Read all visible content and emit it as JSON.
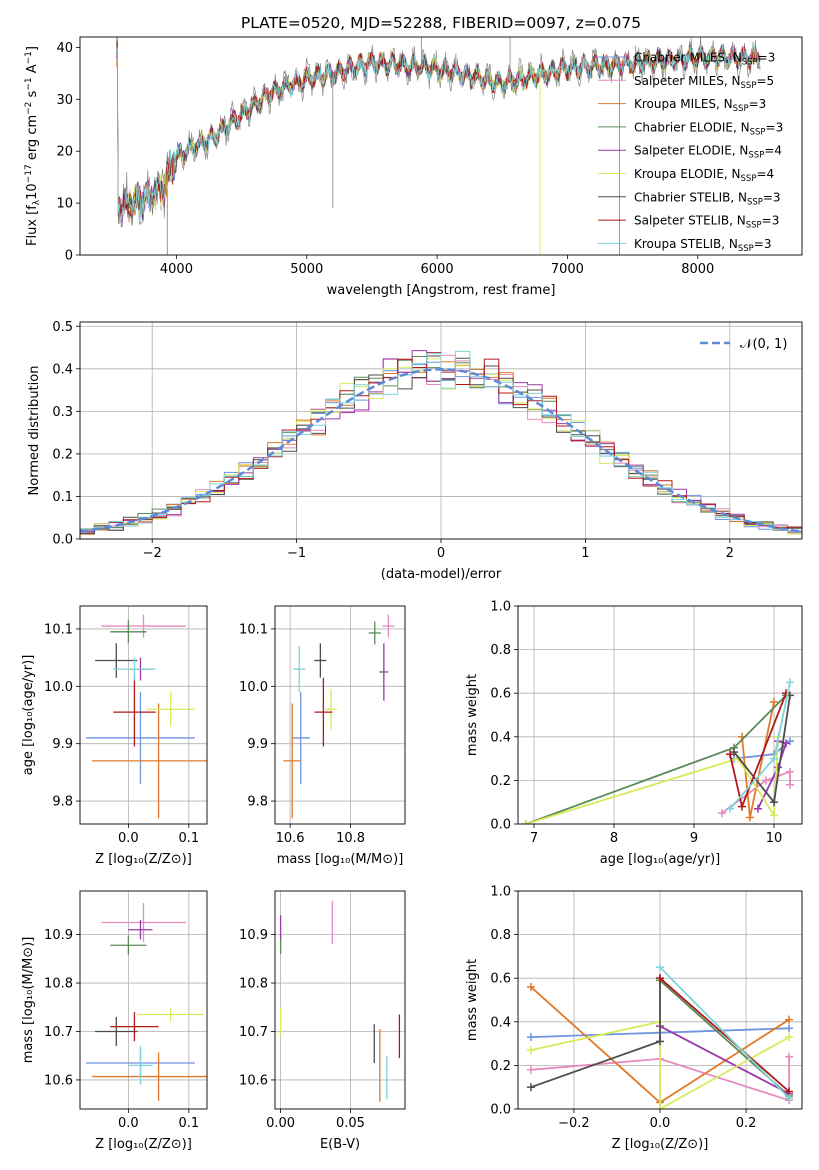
{
  "colors": {
    "chab_miles": "#6f94e0",
    "salp_miles": "#e68ac0",
    "krou_miles": "#e0792a",
    "chab_elodie": "#5a8a5a",
    "salp_elodie": "#9a3aaa",
    "krou_elodie": "#d8ea5a",
    "chab_stelib": "#4d4d4d",
    "salp_stelib": "#b01818",
    "krou_stelib": "#7fd4d9",
    "normal": "#5b8ad8"
  },
  "chart_data": [
    {
      "id": "spectrum",
      "type": "line",
      "title": "PLATE=0520, MJD=52288, FIBERID=0097, z=0.075",
      "xlabel": "wavelength [Angstrom, rest frame]",
      "ylabel_parts": [
        "Flux [f",
        "λ",
        "10",
        "−17",
        " erg cm",
        "−2",
        " s",
        "−1",
        " A",
        "−1",
        "]"
      ],
      "xlim": [
        3260,
        8800
      ],
      "ylim": [
        0,
        42
      ],
      "xticks": [
        4000,
        5000,
        6000,
        7000,
        8000
      ],
      "yticks": [
        0,
        10,
        20,
        30,
        40
      ],
      "continuum_x": [
        3550,
        3700,
        3900,
        4000,
        4150,
        4300,
        4500,
        4700,
        5000,
        5200,
        5500,
        6000,
        6500,
        7000,
        7500,
        8000,
        8500
      ],
      "continuum_y": [
        9,
        10,
        13,
        19,
        21,
        23,
        27,
        31,
        34,
        35,
        37,
        36,
        33,
        36,
        37,
        38,
        38
      ],
      "legend": [
        {
          "label": "Chabrier MILES, N",
          "sub": "SSP",
          "suffix": "=3",
          "color": "chab_miles"
        },
        {
          "label": "Salpeter MILES, N",
          "sub": "SSP",
          "suffix": "=5",
          "color": "salp_miles"
        },
        {
          "label": "Kroupa MILES, N",
          "sub": "SSP",
          "suffix": "=3",
          "color": "krou_miles"
        },
        {
          "label": "Chabrier ELODIE, N",
          "sub": "SSP",
          "suffix": "=3",
          "color": "chab_elodie"
        },
        {
          "label": "Salpeter ELODIE, N",
          "sub": "SSP",
          "suffix": "=4",
          "color": "salp_elodie"
        },
        {
          "label": "Kroupa ELODIE, N",
          "sub": "SSP",
          "suffix": "=4",
          "color": "krou_elodie"
        },
        {
          "label": "Chabrier STELIB, N",
          "sub": "SSP",
          "suffix": "=3",
          "color": "chab_stelib"
        },
        {
          "label": "Salpeter STELIB, N",
          "sub": "SSP",
          "suffix": "=3",
          "color": "salp_stelib"
        },
        {
          "label": "Kroupa STELIB, N",
          "sub": "SSP",
          "suffix": "=3",
          "color": "krou_stelib"
        }
      ]
    },
    {
      "id": "residuals",
      "type": "line",
      "xlabel": "(data-model)/error",
      "ylabel": "Normed distribution",
      "xlim": [
        -2.5,
        2.5
      ],
      "ylim": [
        0,
        0.51
      ],
      "xticks": [
        -2,
        -1,
        0,
        1,
        2
      ],
      "xtick_labels": [
        "−2",
        "−1",
        "0",
        "1",
        "2"
      ],
      "yticks": [
        0.0,
        0.1,
        0.2,
        0.3,
        0.4,
        0.5
      ],
      "ytick_labels": [
        "0.0",
        "0.1",
        "0.2",
        "0.3",
        "0.4",
        "0.5"
      ],
      "legend_label": "𝒩(0, 1)",
      "legend_location": "upper right",
      "grid": true
    },
    {
      "id": "z_age",
      "type": "scatter",
      "xlabel": "Z [log₁₀(Z/Z⊙)]",
      "ylabel": "age  [log₁₀(age/yr)]",
      "xlim": [
        -0.08,
        0.13
      ],
      "ylim": [
        9.76,
        10.14
      ],
      "xticks": [
        0.0,
        0.1
      ],
      "xtick_labels": [
        "0.0",
        "0.1"
      ],
      "yticks": [
        9.8,
        9.9,
        10.0,
        10.1
      ],
      "ytick_labels": [
        "9.8",
        "9.9",
        "10.0",
        "10.1"
      ],
      "points": [
        {
          "x": 0.02,
          "y": 9.91,
          "xerr": 0.09,
          "yerr": 0.08,
          "color": "chab_miles"
        },
        {
          "x": 0.025,
          "y": 10.105,
          "xerr": 0.07,
          "yerr": 0.02,
          "color": "salp_miles"
        },
        {
          "x": 0.05,
          "y": 9.87,
          "xerr": 0.11,
          "yerr": 0.1,
          "color": "krou_miles"
        },
        {
          "x": 0.0,
          "y": 10.095,
          "xerr": 0.03,
          "yerr": 0.02,
          "color": "chab_elodie"
        },
        {
          "x": 0.02,
          "y": 10.03,
          "xerr": 0.02,
          "yerr": 0.02,
          "color": "salp_elodie"
        },
        {
          "x": 0.07,
          "y": 9.96,
          "xerr": 0.04,
          "yerr": 0.03,
          "color": "krou_elodie"
        },
        {
          "x": -0.02,
          "y": 10.045,
          "xerr": 0.035,
          "yerr": 0.03,
          "color": "chab_stelib"
        },
        {
          "x": 0.01,
          "y": 9.955,
          "xerr": 0.035,
          "yerr": 0.06,
          "color": "salp_stelib"
        },
        {
          "x": 0.01,
          "y": 10.03,
          "xerr": 0.035,
          "yerr": 0.02,
          "color": "krou_stelib"
        }
      ]
    },
    {
      "id": "mass_age",
      "type": "scatter",
      "xlabel": "mass [log₁₀(M/M⊙)]",
      "xlim": [
        10.55,
        10.98
      ],
      "ylim": [
        9.76,
        10.14
      ],
      "xticks": [
        10.6,
        10.8
      ],
      "xtick_labels": [
        "10.6",
        "10.8"
      ],
      "yticks": [
        9.8,
        9.9,
        10.0,
        10.1
      ],
      "ytick_labels": [
        "9.8",
        "9.9",
        "10.0",
        "10.1"
      ],
      "points": [
        {
          "x": 10.635,
          "y": 9.91,
          "xerr": 0.03,
          "yerr": 0.08,
          "color": "chab_miles"
        },
        {
          "x": 10.925,
          "y": 10.105,
          "xerr": 0.02,
          "yerr": 0.02,
          "color": "salp_miles"
        },
        {
          "x": 10.607,
          "y": 9.87,
          "xerr": 0.03,
          "yerr": 0.1,
          "color": "krou_miles"
        },
        {
          "x": 10.88,
          "y": 10.093,
          "xerr": 0.02,
          "yerr": 0.02,
          "color": "chab_elodie"
        },
        {
          "x": 10.91,
          "y": 10.025,
          "xerr": 0.015,
          "yerr": 0.05,
          "color": "salp_elodie"
        },
        {
          "x": 10.735,
          "y": 9.96,
          "xerr": 0.02,
          "yerr": 0.035,
          "color": "krou_elodie"
        },
        {
          "x": 10.7,
          "y": 10.045,
          "xerr": 0.02,
          "yerr": 0.03,
          "color": "chab_stelib"
        },
        {
          "x": 10.71,
          "y": 9.955,
          "xerr": 0.03,
          "yerr": 0.06,
          "color": "salp_stelib"
        },
        {
          "x": 10.63,
          "y": 10.03,
          "xerr": 0.02,
          "yerr": 0.04,
          "color": "krou_stelib"
        }
      ]
    },
    {
      "id": "age_weight",
      "type": "line",
      "xlabel": "age  [log₁₀(age/yr)]",
      "ylabel": "mass weight",
      "xlim": [
        6.8,
        10.35
      ],
      "ylim": [
        0,
        1.0
      ],
      "xticks": [
        7,
        8,
        9,
        10
      ],
      "xtick_labels": [
        "7",
        "8",
        "9",
        "10"
      ],
      "yticks": [
        0.0,
        0.2,
        0.4,
        0.6,
        0.8,
        1.0
      ],
      "ytick_labels": [
        "0.0",
        "0.2",
        "0.4",
        "0.6",
        "0.8",
        "1.0"
      ],
      "grid": true,
      "series": [
        {
          "color": "chab_miles",
          "x": [
            9.5,
            10.0,
            10.2
          ],
          "y": [
            0.3,
            0.32,
            0.38
          ]
        },
        {
          "color": "salp_miles",
          "x": [
            9.35,
            9.9,
            10.2,
            10.2
          ],
          "y": [
            0.05,
            0.2,
            0.24,
            0.18
          ]
        },
        {
          "color": "krou_miles",
          "x": [
            9.6,
            9.7,
            10.0
          ],
          "y": [
            0.4,
            0.03,
            0.56
          ]
        },
        {
          "color": "chab_elodie",
          "x": [
            6.9,
            9.5,
            10.15
          ],
          "y": [
            0.0,
            0.35,
            0.59
          ]
        },
        {
          "color": "salp_elodie",
          "x": [
            9.8,
            10.05,
            10.15,
            10.05
          ],
          "y": [
            0.07,
            0.26,
            0.37,
            0.38
          ]
        },
        {
          "color": "krou_elodie",
          "x": [
            6.9,
            9.55,
            10.0,
            10.05
          ],
          "y": [
            0.0,
            0.3,
            0.04,
            0.4
          ]
        },
        {
          "color": "chab_stelib",
          "x": [
            9.5,
            10.0,
            10.2
          ],
          "y": [
            0.33,
            0.1,
            0.59
          ]
        },
        {
          "color": "salp_stelib",
          "x": [
            9.45,
            9.6,
            10.15
          ],
          "y": [
            0.32,
            0.08,
            0.6
          ]
        },
        {
          "color": "krou_stelib",
          "x": [
            9.45,
            10.0,
            10.2
          ],
          "y": [
            0.07,
            0.3,
            0.65
          ]
        }
      ]
    },
    {
      "id": "z_mass",
      "type": "scatter",
      "xlabel": "Z [log₁₀(Z/Z⊙)]",
      "ylabel": "mass [log₁₀(M/M⊙)]",
      "xlim": [
        -0.08,
        0.13
      ],
      "ylim": [
        10.54,
        10.99
      ],
      "xticks": [
        0.0,
        0.1
      ],
      "xtick_labels": [
        "0.0",
        "0.1"
      ],
      "yticks": [
        10.6,
        10.7,
        10.8,
        10.9
      ],
      "ytick_labels": [
        "10.6",
        "10.7",
        "10.8",
        "10.9"
      ],
      "points": [
        {
          "x": 0.02,
          "y": 10.635,
          "xerr": 0.09,
          "yerr": 0.03,
          "color": "chab_miles"
        },
        {
          "x": 0.025,
          "y": 10.925,
          "xerr": 0.07,
          "yerr": 0.04,
          "color": "salp_miles"
        },
        {
          "x": 0.05,
          "y": 10.607,
          "xerr": 0.11,
          "yerr": 0.05,
          "color": "krou_miles"
        },
        {
          "x": 0.0,
          "y": 10.878,
          "xerr": 0.03,
          "yerr": 0.02,
          "color": "chab_elodie"
        },
        {
          "x": 0.02,
          "y": 10.91,
          "xerr": 0.02,
          "yerr": 0.02,
          "color": "salp_elodie"
        },
        {
          "x": 0.07,
          "y": 10.735,
          "xerr": 0.055,
          "yerr": 0.015,
          "color": "krou_elodie"
        },
        {
          "x": -0.02,
          "y": 10.7,
          "xerr": 0.035,
          "yerr": 0.03,
          "color": "chab_stelib"
        },
        {
          "x": 0.01,
          "y": 10.71,
          "xerr": 0.04,
          "yerr": 0.03,
          "color": "salp_stelib"
        },
        {
          "x": 0.02,
          "y": 10.63,
          "xerr": 0.02,
          "yerr": 0.04,
          "color": "krou_stelib"
        }
      ]
    },
    {
      "id": "ebv_mass",
      "type": "scatter",
      "xlabel": "E(B-V)",
      "xlim": [
        -0.004,
        0.089
      ],
      "ylim": [
        10.54,
        10.99
      ],
      "xticks": [
        0.0,
        0.05
      ],
      "xtick_labels": [
        "0.00",
        "0.05"
      ],
      "yticks": [
        10.6,
        10.7,
        10.8,
        10.9
      ],
      "ytick_labels": [
        "10.6",
        "10.7",
        "10.8",
        "10.9"
      ],
      "points": [
        {
          "x": 0.0,
          "y": 10.88,
          "xerr": 0,
          "yerr": 0.02,
          "color": "chab_elodie"
        },
        {
          "x": 0.0,
          "y": 10.915,
          "xerr": 0,
          "yerr": 0.025,
          "color": "salp_elodie"
        },
        {
          "x": 0.0,
          "y": 10.72,
          "xerr": 0,
          "yerr": 0.03,
          "color": "krou_elodie"
        },
        {
          "x": 0.037,
          "y": 10.925,
          "xerr": 0,
          "yerr": 0.045,
          "color": "salp_miles"
        },
        {
          "x": 0.067,
          "y": 10.675,
          "xerr": 0,
          "yerr": 0.04,
          "color": "chab_stelib"
        },
        {
          "x": 0.071,
          "y": 10.63,
          "xerr": 0,
          "yerr": 0.075,
          "color": "krou_miles"
        },
        {
          "x": 0.076,
          "y": 10.605,
          "xerr": 0,
          "yerr": 0.045,
          "color": "krou_stelib"
        },
        {
          "x": 0.085,
          "y": 10.69,
          "xerr": 0,
          "yerr": 0.045,
          "color": "salp_stelib"
        }
      ]
    },
    {
      "id": "z_weight",
      "type": "line",
      "xlabel": "Z [log₁₀(Z/Z⊙)]",
      "ylabel": "mass weight",
      "xlim": [
        -0.33,
        0.33
      ],
      "ylim": [
        0,
        1.0
      ],
      "xticks": [
        -0.2,
        0.0,
        0.2
      ],
      "xtick_labels": [
        "−0.2",
        "0.0",
        "0.2"
      ],
      "yticks": [
        0.0,
        0.2,
        0.4,
        0.6,
        0.8,
        1.0
      ],
      "ytick_labels": [
        "0.0",
        "0.2",
        "0.4",
        "0.6",
        "0.8",
        "1.0"
      ],
      "grid": true,
      "series": [
        {
          "color": "chab_miles",
          "x": [
            -0.3,
            0.3
          ],
          "y": [
            0.33,
            0.37
          ]
        },
        {
          "color": "salp_miles",
          "x": [
            -0.3,
            0.0,
            0.3,
            0.3
          ],
          "y": [
            0.18,
            0.23,
            0.04,
            0.24
          ]
        },
        {
          "color": "krou_miles",
          "x": [
            -0.3,
            0.0,
            0.3
          ],
          "y": [
            0.56,
            0.03,
            0.41
          ]
        },
        {
          "color": "chab_elodie",
          "x": [
            0.0,
            0.3
          ],
          "y": [
            0.59,
            0.06
          ]
        },
        {
          "color": "salp_elodie",
          "x": [
            0.0,
            0.3
          ],
          "y": [
            0.38,
            0.07
          ]
        },
        {
          "color": "krou_elodie",
          "x": [
            -0.3,
            0.0,
            0.0,
            0.3
          ],
          "y": [
            0.27,
            0.4,
            0.0,
            0.33
          ]
        },
        {
          "color": "chab_stelib",
          "x": [
            -0.3,
            0.0,
            0.0
          ],
          "y": [
            0.1,
            0.31,
            0.6
          ]
        },
        {
          "color": "salp_stelib",
          "x": [
            0.0,
            0.3
          ],
          "y": [
            0.6,
            0.08
          ]
        },
        {
          "color": "krou_stelib",
          "x": [
            0.0,
            0.3
          ],
          "y": [
            0.65,
            0.05
          ]
        }
      ]
    }
  ]
}
